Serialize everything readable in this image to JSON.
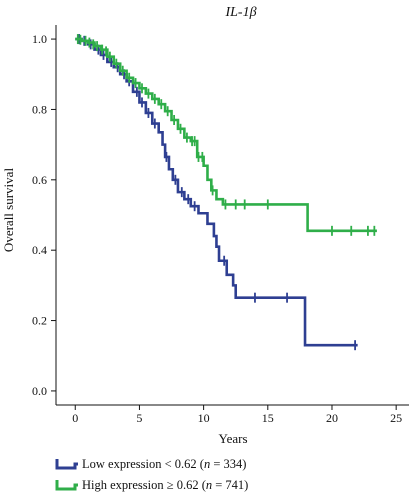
{
  "chart_data": {
    "type": "line",
    "subtype": "kaplan-meier",
    "title": "IL-1β",
    "xlabel": "Years",
    "ylabel": "Overall survival",
    "xlim": [
      -1.5,
      26
    ],
    "ylim": [
      -0.04,
      1.04
    ],
    "x_ticks": [
      0,
      5,
      10,
      15,
      20,
      25
    ],
    "y_ticks": [
      0.0,
      0.2,
      0.4,
      0.6,
      0.8,
      1.0
    ],
    "x_tick_labels": [
      "0",
      "5",
      "10",
      "15",
      "20",
      "25"
    ],
    "y_tick_labels": [
      "0.0",
      "0.2",
      "0.4",
      "0.6",
      "0.8",
      "1.0"
    ],
    "grid": false,
    "legend_position": "bottom-left",
    "series": [
      {
        "name": "Low expression < 0.62 (n = 334)",
        "legend_parts": [
          "Low expression < 0.62 (",
          "n",
          " = 334)"
        ],
        "color": "#2e3f92",
        "steps": [
          [
            0,
            1.0
          ],
          [
            0.5,
            0.995
          ],
          [
            1.0,
            0.985
          ],
          [
            1.5,
            0.97
          ],
          [
            2.0,
            0.955
          ],
          [
            2.5,
            0.935
          ],
          [
            3.0,
            0.92
          ],
          [
            3.5,
            0.9
          ],
          [
            4.0,
            0.88
          ],
          [
            4.5,
            0.85
          ],
          [
            5.0,
            0.82
          ],
          [
            5.5,
            0.79
          ],
          [
            6.0,
            0.76
          ],
          [
            6.5,
            0.735
          ],
          [
            6.8,
            0.7
          ],
          [
            7.0,
            0.665
          ],
          [
            7.3,
            0.63
          ],
          [
            7.6,
            0.6
          ],
          [
            8.0,
            0.565
          ],
          [
            8.5,
            0.545
          ],
          [
            9.0,
            0.525
          ],
          [
            9.6,
            0.505
          ],
          [
            10.3,
            0.475
          ],
          [
            10.8,
            0.44
          ],
          [
            11.0,
            0.41
          ],
          [
            11.2,
            0.37
          ],
          [
            11.8,
            0.33
          ],
          [
            12.3,
            0.3
          ],
          [
            12.5,
            0.265
          ],
          [
            17.5,
            0.265
          ],
          [
            17.9,
            0.13
          ],
          [
            22.0,
            0.13
          ]
        ],
        "censors": [
          [
            0.3,
            1.0
          ],
          [
            0.7,
            0.995
          ],
          [
            1.2,
            0.985
          ],
          [
            1.8,
            0.97
          ],
          [
            2.2,
            0.955
          ],
          [
            2.8,
            0.935
          ],
          [
            3.3,
            0.92
          ],
          [
            3.8,
            0.9
          ],
          [
            4.2,
            0.88
          ],
          [
            4.8,
            0.85
          ],
          [
            5.2,
            0.82
          ],
          [
            5.7,
            0.79
          ],
          [
            6.2,
            0.76
          ],
          [
            7.1,
            0.665
          ],
          [
            7.8,
            0.6
          ],
          [
            8.3,
            0.565
          ],
          [
            8.8,
            0.545
          ],
          [
            9.3,
            0.525
          ],
          [
            11.6,
            0.37
          ],
          [
            14.0,
            0.265
          ],
          [
            16.5,
            0.265
          ],
          [
            21.8,
            0.13
          ]
        ]
      },
      {
        "name": "High expression ≥ 0.62 (n = 741)",
        "legend_parts": [
          "High expression ≥ 0.62 (",
          "n",
          " = 741)"
        ],
        "color": "#2fae49",
        "steps": [
          [
            0,
            1.0
          ],
          [
            0.5,
            0.995
          ],
          [
            1.0,
            0.99
          ],
          [
            1.5,
            0.98
          ],
          [
            2.0,
            0.97
          ],
          [
            2.5,
            0.95
          ],
          [
            3.0,
            0.93
          ],
          [
            3.5,
            0.91
          ],
          [
            4.0,
            0.89
          ],
          [
            4.5,
            0.875
          ],
          [
            5.0,
            0.86
          ],
          [
            5.5,
            0.845
          ],
          [
            6.0,
            0.83
          ],
          [
            6.5,
            0.815
          ],
          [
            7.0,
            0.795
          ],
          [
            7.5,
            0.77
          ],
          [
            8.0,
            0.745
          ],
          [
            8.5,
            0.72
          ],
          [
            9.0,
            0.71
          ],
          [
            9.5,
            0.665
          ],
          [
            10.0,
            0.64
          ],
          [
            10.3,
            0.6
          ],
          [
            10.6,
            0.57
          ],
          [
            11.0,
            0.545
          ],
          [
            11.5,
            0.53
          ],
          [
            18.0,
            0.53
          ],
          [
            18.1,
            0.455
          ],
          [
            23.5,
            0.455
          ]
        ],
        "censors": [
          [
            0.2,
            1.0
          ],
          [
            0.4,
            0.998
          ],
          [
            0.8,
            0.995
          ],
          [
            1.1,
            0.99
          ],
          [
            1.4,
            0.985
          ],
          [
            1.7,
            0.98
          ],
          [
            2.1,
            0.97
          ],
          [
            2.4,
            0.965
          ],
          [
            2.7,
            0.95
          ],
          [
            3.2,
            0.93
          ],
          [
            3.7,
            0.91
          ],
          [
            4.2,
            0.89
          ],
          [
            4.7,
            0.875
          ],
          [
            5.2,
            0.86
          ],
          [
            5.7,
            0.845
          ],
          [
            6.2,
            0.83
          ],
          [
            6.7,
            0.815
          ],
          [
            7.2,
            0.795
          ],
          [
            7.7,
            0.77
          ],
          [
            8.2,
            0.745
          ],
          [
            8.7,
            0.72
          ],
          [
            9.1,
            0.71
          ],
          [
            9.3,
            0.71
          ],
          [
            9.6,
            0.665
          ],
          [
            9.9,
            0.665
          ],
          [
            10.7,
            0.57
          ],
          [
            11.7,
            0.53
          ],
          [
            12.5,
            0.53
          ],
          [
            13.2,
            0.53
          ],
          [
            15.0,
            0.53
          ],
          [
            20.0,
            0.455
          ],
          [
            21.5,
            0.455
          ],
          [
            22.8,
            0.455
          ],
          [
            23.3,
            0.455
          ]
        ]
      }
    ]
  }
}
